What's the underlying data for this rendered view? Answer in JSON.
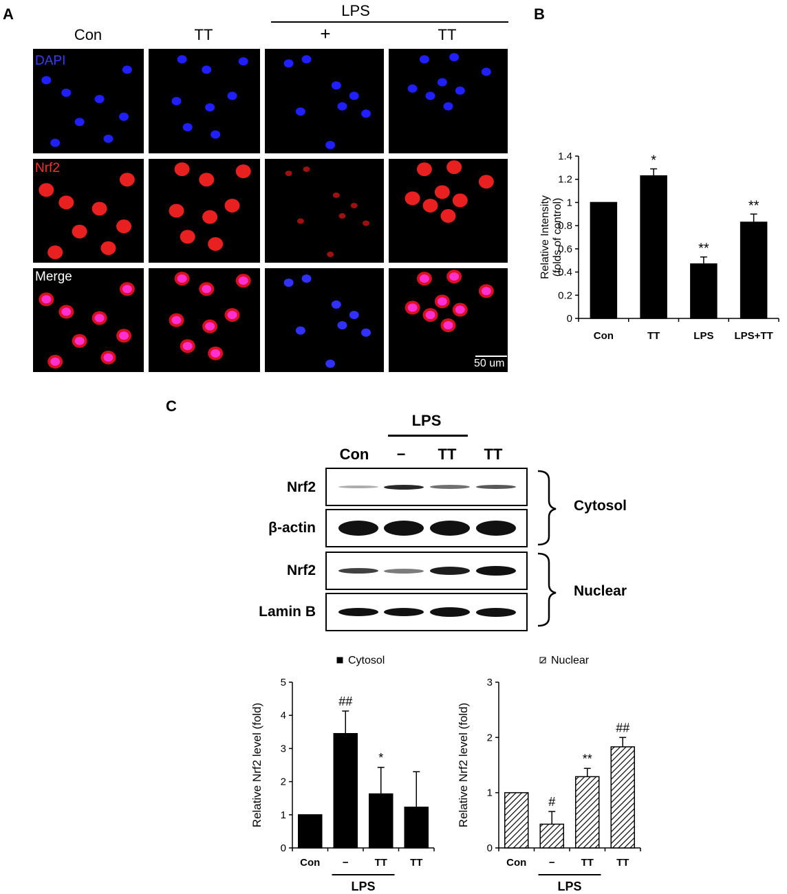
{
  "panels": {
    "a": "A",
    "b": "B",
    "c": "C"
  },
  "panel_a": {
    "group_label": "LPS",
    "columns": [
      "Con",
      "TT",
      "+",
      "TT"
    ],
    "rows": [
      {
        "label": "DAPI",
        "color": "#3b3bff"
      },
      {
        "label": "Nrf2",
        "color": "#ff3030"
      },
      {
        "label": "Merge",
        "color": "#ffffff"
      }
    ],
    "scale_bar": "50 um"
  },
  "panel_c_blot": {
    "group_label": "LPS",
    "lanes": [
      "Con",
      "−",
      "TT",
      "TT"
    ],
    "rows": [
      "Nrf2",
      "β-actin",
      "Nrf2",
      "Lamin B"
    ],
    "fractions": [
      "Cytosol",
      "Nuclear"
    ]
  },
  "chart_data": [
    {
      "type": "bar",
      "panel": "B",
      "categories": [
        "Con",
        "TT",
        "LPS",
        "LPS+TT"
      ],
      "values": [
        1.0,
        1.23,
        0.47,
        0.83
      ],
      "errors": [
        0.0,
        0.06,
        0.06,
        0.07
      ],
      "annotations": [
        "",
        "*",
        "**",
        "**"
      ],
      "ylabel": [
        "Relative Intensity",
        "(folds of control)"
      ],
      "yticks": [
        "0",
        "0.2",
        "0.4",
        "0.6",
        "0.8",
        "1",
        "1.2",
        "1.4"
      ],
      "ylim": [
        0,
        1.4
      ],
      "bar_color": "#000000"
    },
    {
      "type": "bar",
      "panel": "C-cytosol",
      "legend": "Cytosol",
      "categories": [
        "Con",
        "−",
        "TT",
        "TT"
      ],
      "group_label": "LPS",
      "values": [
        1.0,
        3.45,
        1.63,
        1.23
      ],
      "errors": [
        0.0,
        0.68,
        0.8,
        1.07
      ],
      "annotations": [
        "",
        "##",
        "*",
        ""
      ],
      "ylabel": "Relative Nrf2 level (fold)",
      "yticks": [
        "0",
        "1",
        "2",
        "3",
        "4",
        "5"
      ],
      "ylim": [
        0,
        5
      ],
      "bar_color": "#000000"
    },
    {
      "type": "bar",
      "panel": "C-nuclear",
      "legend": "Nuclear",
      "categories": [
        "Con",
        "−",
        "TT",
        "TT"
      ],
      "group_label": "LPS",
      "values": [
        1.0,
        0.43,
        1.29,
        1.83
      ],
      "errors": [
        0.0,
        0.23,
        0.15,
        0.17
      ],
      "annotations": [
        "",
        "#",
        "**",
        "##"
      ],
      "ylabel": "Relative Nrf2 level (fold)",
      "yticks": [
        "0",
        "1",
        "2",
        "3"
      ],
      "ylim": [
        0,
        3
      ],
      "bar_color": "hatched"
    }
  ]
}
